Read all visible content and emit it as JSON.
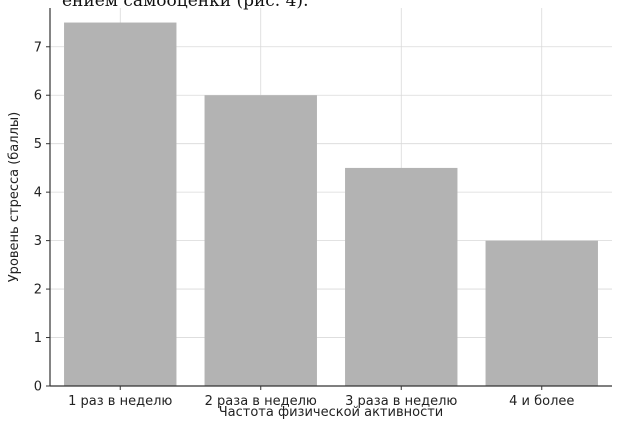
{
  "page": {
    "top_text": "ением самооценки (рис. 4)."
  },
  "colors": {
    "bar": "#b3b3b3",
    "grid": "#d9d9d9",
    "axis": "#333333"
  },
  "chart_data": {
    "type": "bar",
    "title": "",
    "xlabel": "Частота физической активности",
    "ylabel": "Уровень стресса (баллы)",
    "categories": [
      "1 раз в неделю",
      "2 раза в неделю",
      "3 раза в неделю",
      "4 и более"
    ],
    "values": [
      7.5,
      6,
      4.5,
      3
    ],
    "ylim": [
      0,
      7.8
    ],
    "yticks": [
      0,
      1,
      2,
      3,
      4,
      5,
      6,
      7
    ],
    "grid": true,
    "legend": "none"
  }
}
